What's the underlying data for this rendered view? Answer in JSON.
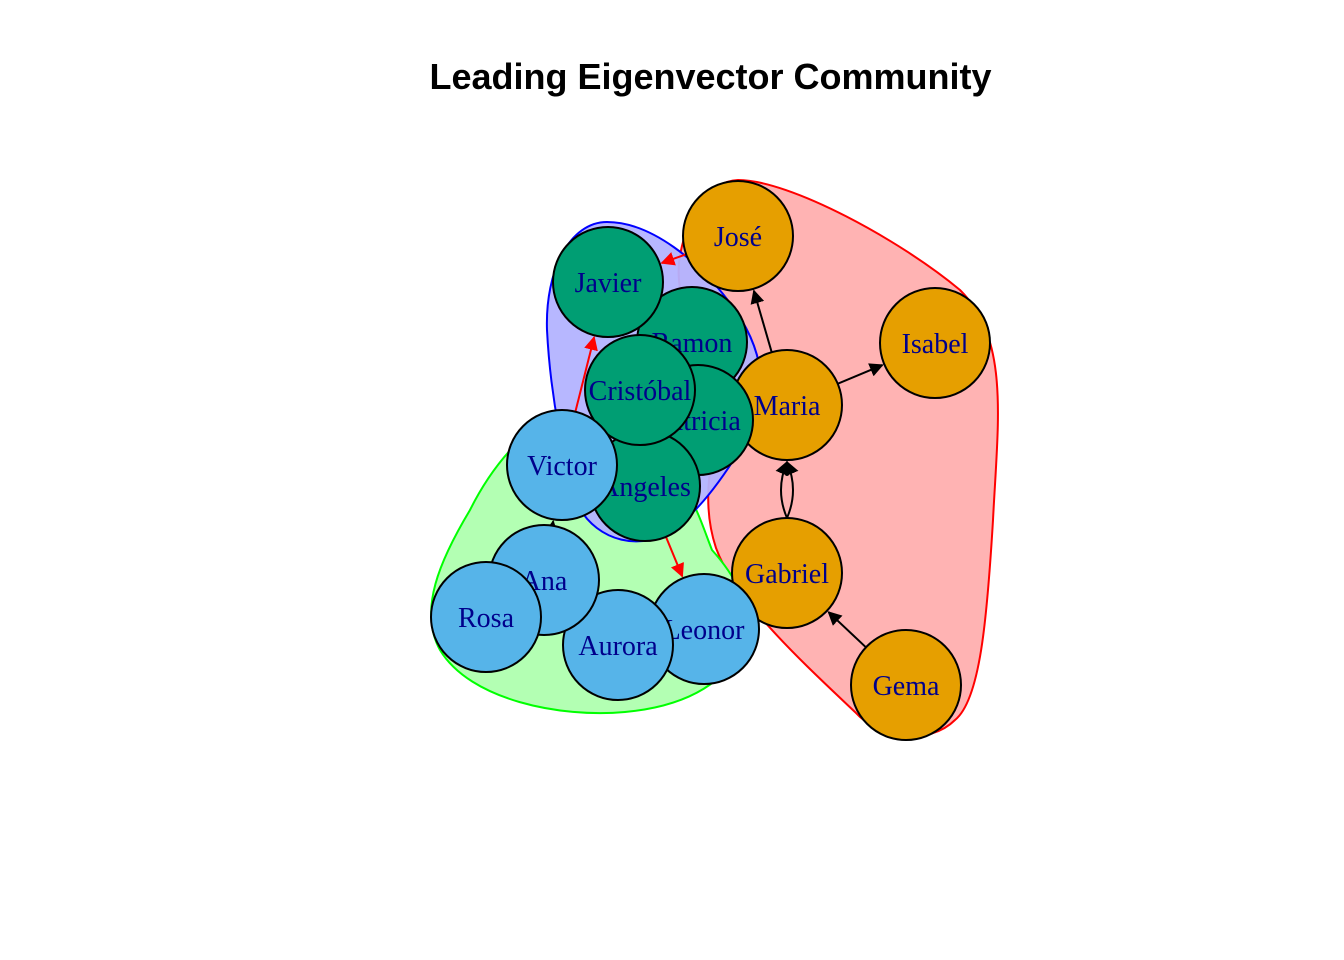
{
  "title": "Leading Eigenvector Community",
  "colors": {
    "community_orange": "#e69f00",
    "community_green": "#009e73",
    "community_blue": "#56b4e9",
    "hull_red_fill": "#ffb3b3",
    "hull_red_stroke": "#ff0000",
    "hull_blue_fill": "#b3b3ff",
    "hull_blue_stroke": "#0000ff",
    "hull_green_fill": "#b3ffb3",
    "hull_green_stroke": "#00ff00",
    "label_color": "#00008b",
    "edge_within": "#000000",
    "edge_between": "#ff0000"
  },
  "nodes": [
    {
      "id": "jose",
      "label": "José",
      "community": "orange"
    },
    {
      "id": "isabel",
      "label": "Isabel",
      "community": "orange"
    },
    {
      "id": "maria",
      "label": "Maria",
      "community": "orange"
    },
    {
      "id": "gabriel",
      "label": "Gabriel",
      "community": "orange"
    },
    {
      "id": "gema",
      "label": "Gema",
      "community": "orange"
    },
    {
      "id": "javier",
      "label": "Javier",
      "community": "green"
    },
    {
      "id": "ramon",
      "label": "Ramon",
      "community": "green"
    },
    {
      "id": "patricia",
      "label": "Patricia",
      "community": "green"
    },
    {
      "id": "cristobal",
      "label": "Cristóbal",
      "community": "green"
    },
    {
      "id": "angeles",
      "label": "Ángeles",
      "community": "green"
    },
    {
      "id": "victor",
      "label": "Victor",
      "community": "blue"
    },
    {
      "id": "ana",
      "label": "Ana",
      "community": "blue"
    },
    {
      "id": "rosa",
      "label": "Rosa",
      "community": "blue"
    },
    {
      "id": "aurora",
      "label": "Aurora",
      "community": "blue"
    },
    {
      "id": "leonor",
      "label": "Leonor",
      "community": "blue"
    }
  ],
  "edges": [
    {
      "from": "maria",
      "to": "jose",
      "between": false
    },
    {
      "from": "maria",
      "to": "isabel",
      "between": false
    },
    {
      "from": "gabriel",
      "to": "maria",
      "between": false,
      "curve": 1
    },
    {
      "from": "gabriel",
      "to": "maria",
      "between": false,
      "curve": -1
    },
    {
      "from": "gema",
      "to": "gabriel",
      "between": false
    },
    {
      "from": "jose",
      "to": "javier",
      "between": true
    },
    {
      "from": "victor",
      "to": "javier",
      "between": true
    },
    {
      "from": "angeles",
      "to": "leonor",
      "between": true
    },
    {
      "from": "ana",
      "to": "victor",
      "between": false
    }
  ]
}
